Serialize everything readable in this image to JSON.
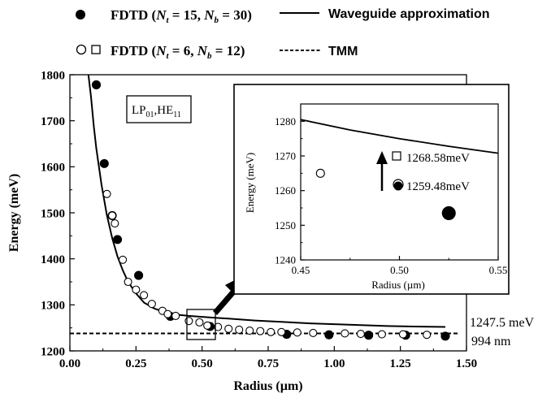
{
  "legend": {
    "row1_label": "FDTD (Nt = 15, Nb = 30)",
    "row1_line_label": "Waveguide approximation",
    "row2_label": "FDTD (Nt = 6, Nb = 12)",
    "row2_line_label": "TMM",
    "row1_parts": {
      "pre": "FDTD (",
      "n1": "N",
      "s1": "t",
      "mid": " = 15, ",
      "n2": "N",
      "s2": "b",
      "post": " = 30)"
    },
    "row2_parts": {
      "pre": "FDTD (",
      "n1": "N",
      "s1": "t",
      "mid": " = 6, ",
      "n2": "N",
      "s2": "b",
      "post": " = 12)"
    }
  },
  "mode_label": {
    "a": "LP",
    "a_sub": "01",
    "sep": ",",
    "b": "HE",
    "b_sub": "11"
  },
  "annotations": {
    "energy_limit": "1247.5 meV",
    "wavelength": "994 nm",
    "inset_val_1": "1268.58meV",
    "inset_val_2": "1259.48meV"
  },
  "chart_data": [
    {
      "type": "scatter",
      "title": "",
      "xlabel": "Radius (µm)",
      "ylabel": "Energy (meV)",
      "xlim": [
        0.0,
        1.5
      ],
      "ylim": [
        1200,
        1800
      ],
      "xticks": [
        "0.00",
        "0.25",
        "0.50",
        "0.75",
        "1.00",
        "1.25",
        "1.50"
      ],
      "yticks": [
        "1200",
        "1300",
        "1400",
        "1500",
        "1600",
        "1700",
        "1800"
      ],
      "series": [
        {
          "name": "FDTD (Nt = 15, Nb = 30)",
          "marker": "filled-circle",
          "x": [
            0.1,
            0.13,
            0.16,
            0.18,
            0.26,
            0.38,
            0.53,
            0.82,
            0.98,
            1.13,
            1.27,
            1.42
          ],
          "y": [
            1778,
            1607,
            1494,
            1442,
            1364,
            1275,
            1253,
            1236,
            1235,
            1234,
            1234,
            1232
          ]
        },
        {
          "name": "FDTD (Nt = 6, Nb = 12)",
          "marker": "open-circle",
          "x": [
            0.14,
            0.16,
            0.17,
            0.2,
            0.22,
            0.25,
            0.28,
            0.31,
            0.35,
            0.37,
            0.4,
            0.45,
            0.49,
            0.52,
            0.56,
            0.6,
            0.64,
            0.68,
            0.72,
            0.76,
            0.8,
            0.86,
            0.92,
            1.04,
            1.1,
            1.18,
            1.26,
            1.35
          ],
          "y": [
            1541,
            1494,
            1477,
            1398,
            1350,
            1333,
            1321,
            1302,
            1287,
            1280,
            1276,
            1265,
            1262,
            1255,
            1252,
            1248,
            1246,
            1244,
            1243,
            1241,
            1241,
            1240,
            1239,
            1238,
            1237,
            1236,
            1236,
            1235
          ]
        },
        {
          "name": "Waveguide approximation",
          "line": "solid",
          "x": [
            0.07,
            0.08,
            0.09,
            0.1,
            0.12,
            0.14,
            0.16,
            0.18,
            0.2,
            0.22,
            0.25,
            0.28,
            0.32,
            0.36,
            0.4,
            0.45,
            0.5,
            0.55,
            0.6,
            0.7,
            0.8,
            0.9,
            1.0,
            1.1,
            1.2,
            1.3,
            1.42
          ],
          "y": [
            1800,
            1752,
            1690,
            1640,
            1560,
            1495,
            1445,
            1405,
            1375,
            1350,
            1325,
            1305,
            1292,
            1284,
            1279,
            1276,
            1274,
            1272,
            1270,
            1266,
            1263,
            1260,
            1258,
            1256,
            1254,
            1253,
            1252
          ]
        },
        {
          "name": "TMM",
          "line": "dashed",
          "x": [
            0.0,
            1.47
          ],
          "y": [
            1238,
            1238
          ]
        }
      ]
    },
    {
      "type": "scatter",
      "title": "",
      "xlabel": "Radius (µm)",
      "ylabel": "Energy (meV)",
      "xlim": [
        0.45,
        0.55
      ],
      "ylim": [
        1240,
        1285
      ],
      "xticks": [
        "0.45",
        "0.50",
        "0.55"
      ],
      "yticks": [
        "1240",
        "1250",
        "1260",
        "1270",
        "1280"
      ],
      "series": [
        {
          "name": "Waveguide approximation",
          "line": "solid",
          "x": [
            0.45,
            0.475,
            0.5,
            0.525,
            0.55
          ],
          "y": [
            1280.5,
            1277.5,
            1275,
            1272.8,
            1270.8
          ]
        },
        {
          "name": "FDTD (Nt = 6, Nb = 12)",
          "marker": "open-circle",
          "x": [
            0.46
          ],
          "y": [
            1265
          ]
        },
        {
          "name": "FDTD (Nt = 15, Nb = 30)",
          "marker": "filled-circle",
          "x": [
            0.525
          ],
          "y": [
            1253.5
          ]
        }
      ]
    }
  ]
}
